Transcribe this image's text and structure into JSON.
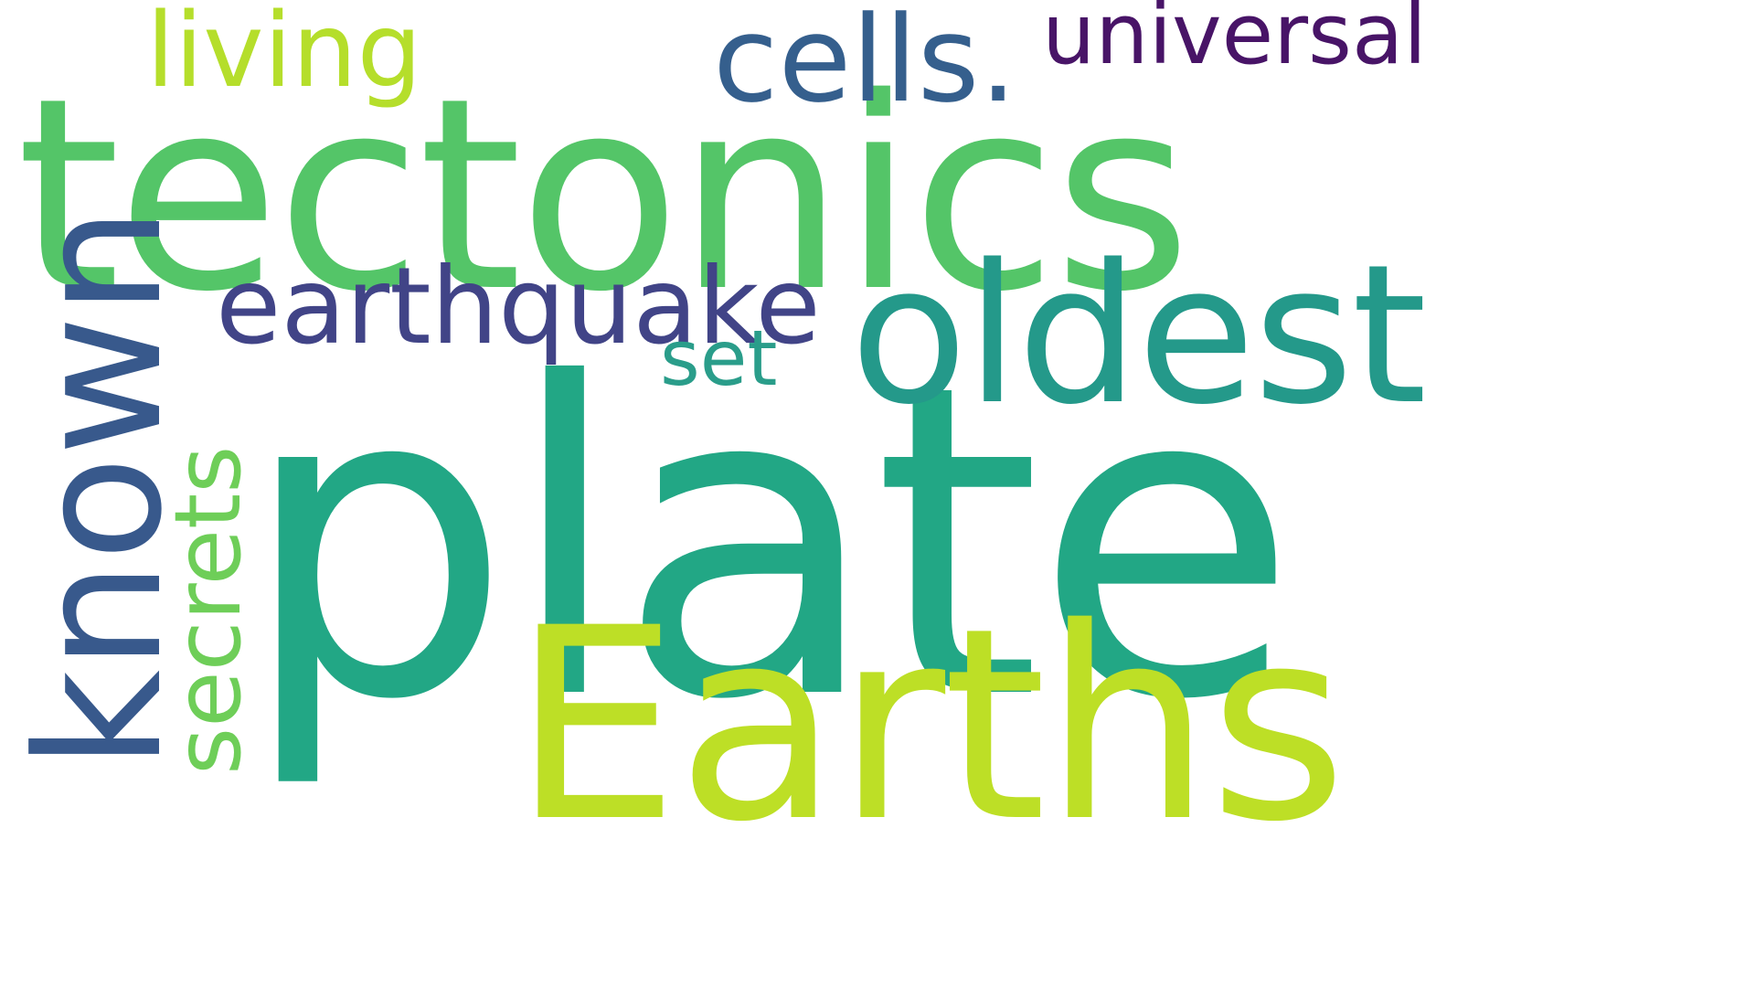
{
  "words": {
    "plate": {
      "text": "plate",
      "color": "#22a785"
    },
    "tectonics": {
      "text": "tectonics",
      "color": "#54c568"
    },
    "earths": {
      "text": "Earths",
      "color": "#bddf26"
    },
    "oldest": {
      "text": "oldest",
      "color": "#24998a"
    },
    "known": {
      "text": "known",
      "color": "#38598c"
    },
    "earthquake": {
      "text": "earthquake",
      "color": "#414487"
    },
    "cells": {
      "text": "cells.",
      "color": "#355f8d"
    },
    "universal": {
      "text": "universal",
      "color": "#481467"
    },
    "living": {
      "text": "living",
      "color": "#b5de2b"
    },
    "secrets": {
      "text": "secrets",
      "color": "#6ece58"
    },
    "set": {
      "text": "set",
      "color": "#2a9d8a"
    }
  }
}
